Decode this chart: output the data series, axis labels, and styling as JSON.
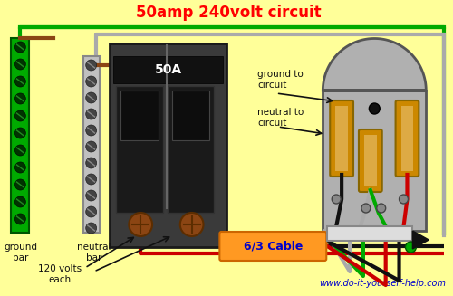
{
  "title": "50amp 240volt circuit",
  "title_color": "#ff0000",
  "bg_color": "#ffff99",
  "website": "www.do-it-yourself-help.com",
  "website_color": "#0000cc",
  "cable_label": "6/3 Cable",
  "cable_color": "#ff9922",
  "cable_label_color": "#0000cc",
  "breaker_label": "50A",
  "ground_bar_color": "#00aa00",
  "wire_green": "#00aa00",
  "wire_red": "#cc0000",
  "wire_black": "#111111",
  "wire_gray": "#aaaaaa",
  "outlet_bg": "#b0b0b0",
  "outlet_slot_color": "#cc8800",
  "outlet_slot_light": "#ddaa44",
  "text_color": "#111111",
  "brown_screw": "#8B4513",
  "breaker_dark": "#222222",
  "breaker_mid": "#3a3a3a",
  "breaker_gray": "#555555"
}
